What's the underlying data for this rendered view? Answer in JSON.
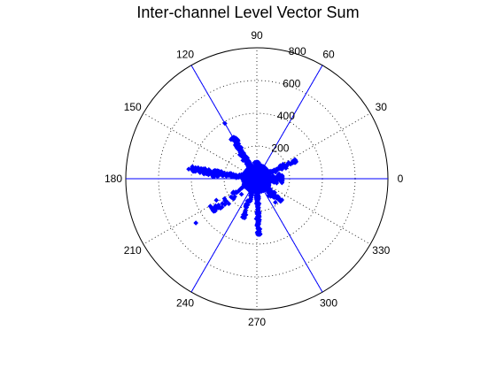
{
  "chart_data": {
    "type": "scatter",
    "coordinate_system": "polar",
    "title": "Inter-channel Level Vector Sum",
    "angle_unit": "degrees",
    "angle_ticks": [
      "0",
      "30",
      "60",
      "90",
      "120",
      "150",
      "180",
      "210",
      "240",
      "270",
      "300",
      "330"
    ],
    "radius_ticks": [
      "200",
      "400",
      "600",
      "800"
    ],
    "rmax": 800,
    "grid": true,
    "marker": "filled diamond",
    "series_color": "#0000ff",
    "reference_lines_deg": [
      0,
      60,
      120,
      180,
      240,
      300
    ],
    "reference_line_color": "#0000ff",
    "lobes": [
      {
        "angle_center": 0,
        "angle_spread": 30,
        "rmax": 155,
        "count": 170
      },
      {
        "angle_center": 25,
        "angle_spread": 10,
        "rmax": 260,
        "count": 120
      },
      {
        "angle_center": 90,
        "angle_spread": 20,
        "rmax": 100,
        "count": 110
      },
      {
        "angle_center": 120,
        "angle_spread": 12,
        "rmax": 290,
        "count": 160
      },
      {
        "angle_center": 172,
        "angle_spread": 10,
        "rmax": 400,
        "count": 220
      },
      {
        "angle_center": 215,
        "angle_spread": 18,
        "rmax": 330,
        "count": 70
      },
      {
        "angle_center": 250,
        "angle_spread": 10,
        "rmax": 250,
        "count": 70
      },
      {
        "angle_center": 272,
        "angle_spread": 6,
        "rmax": 340,
        "count": 190
      },
      {
        "angle_center": 315,
        "angle_spread": 20,
        "rmax": 200,
        "count": 90
      }
    ],
    "core": {
      "rmax": 85,
      "count": 900
    },
    "highlight_points": [
      {
        "theta": 216,
        "r": 460
      },
      {
        "theta": 120,
        "r": 390
      },
      {
        "theta": 26,
        "r": 245
      },
      {
        "theta": 172,
        "r": 420
      },
      {
        "theta": 208,
        "r": 280
      }
    ]
  }
}
